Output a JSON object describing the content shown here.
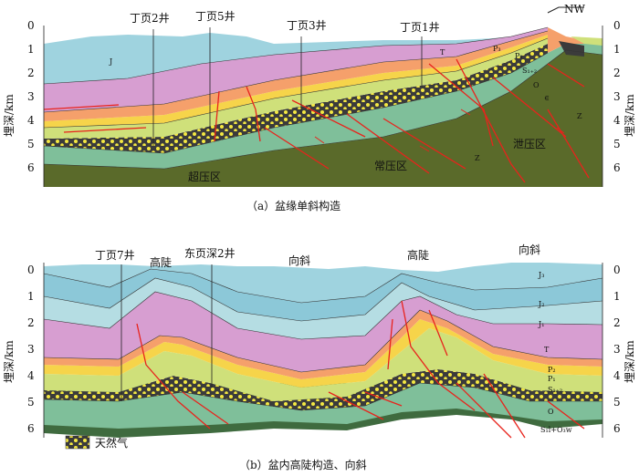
{
  "panel_a": {
    "caption": "（a）盆缘单斜构造",
    "axis_left_label": "埋深/km",
    "axis_right_label": "埋深/km",
    "depth_ticks": [
      "0",
      "1",
      "2",
      "3",
      "4",
      "5",
      "6"
    ],
    "wells": [
      "丁页2井",
      "丁页5井",
      "丁页3井",
      "丁页1井"
    ],
    "zones": [
      "超压区",
      "常压区",
      "泄压区"
    ],
    "compass": "NW",
    "strata_labels": {
      "J": "J",
      "T": "T",
      "P3": "P₃",
      "P1": "P₁",
      "S": "S₁₊₂",
      "O": "O",
      "Cam": "∈",
      "Z": "Z",
      "Z2": "Z"
    },
    "colors": {
      "J": "#9fd3df",
      "T": "#d79ed1",
      "P": "#f5a06b",
      "Pyellow": "#f6d44a",
      "S": "#cfe07a",
      "shale": "#3b3b3b",
      "O": "#7fbf9a",
      "deep": "#5a6a2a",
      "fault": "#e8231c"
    }
  },
  "panel_b": {
    "caption": "（b）盆内高陡构造、向斜",
    "axis_left_label": "埋深/km",
    "axis_right_label": "埋深/km",
    "depth_ticks": [
      "0",
      "1",
      "2",
      "3",
      "4",
      "5",
      "6"
    ],
    "wells": [
      "丁页7井",
      "东页深2井"
    ],
    "structures": [
      "高陡",
      "向斜",
      "高陡",
      "向斜"
    ],
    "strata_labels": {
      "J3": "J₃",
      "J2": "J₂",
      "J1": "J₁",
      "T": "T",
      "P2": "P₂",
      "P1": "P₁",
      "S": "S₁₊₂",
      "O": "O",
      "SO": "S₁l+O₃w"
    },
    "legend_label": "天然气"
  }
}
